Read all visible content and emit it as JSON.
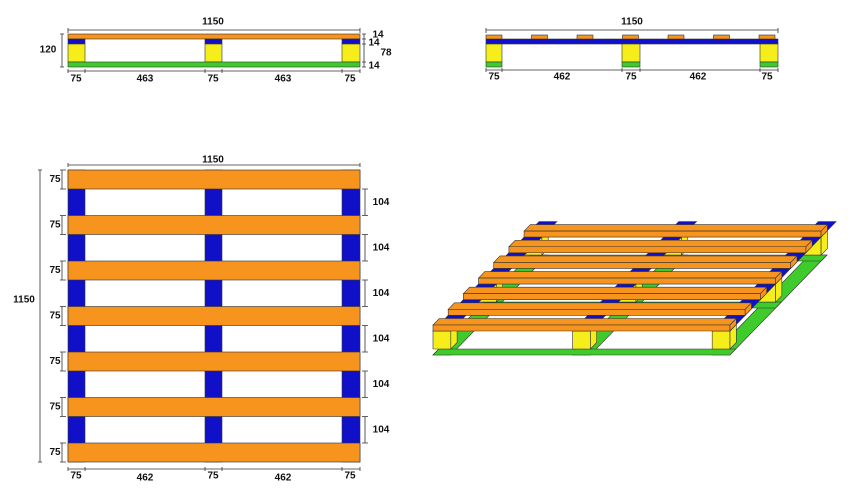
{
  "front_view": {
    "width": "1150",
    "height": "120",
    "right_dims": [
      "14",
      "14",
      "78",
      "14"
    ],
    "bottom_dims": [
      "75",
      "463",
      "75",
      "463",
      "75"
    ]
  },
  "side_view": {
    "width": "1150",
    "bottom_dims": [
      "75",
      "462",
      "75",
      "462",
      "75"
    ]
  },
  "top_view": {
    "width": "1150",
    "depth": "1150",
    "board_widths": [
      "75",
      "75",
      "75",
      "75",
      "75",
      "75",
      "75"
    ],
    "gaps": [
      "104",
      "104",
      "104",
      "104",
      "104",
      "104"
    ],
    "bottom_dims": [
      "75",
      "462",
      "75",
      "462",
      "75"
    ]
  }
}
